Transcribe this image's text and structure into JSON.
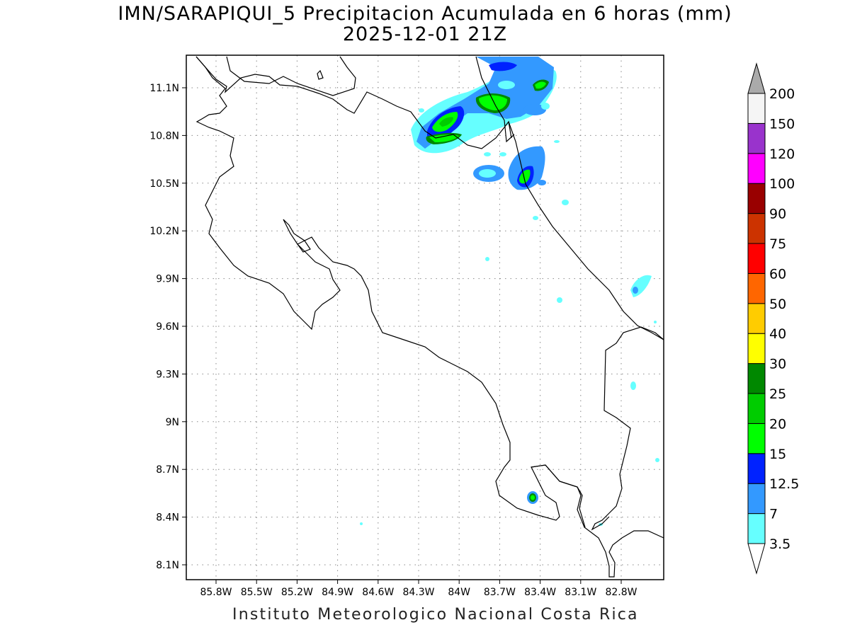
{
  "header": {
    "title_line1": "IMN/SARAPIQUI_5 Precipitacion Acumulada en 6 horas (mm)",
    "title_line2": "2025-12-01 21Z"
  },
  "footer": {
    "text": "Instituto Meteorologico Nacional Costa Rica"
  },
  "map": {
    "lon_ticks": [
      "85.8W",
      "85.5W",
      "85.2W",
      "84.9W",
      "84.6W",
      "84.3W",
      "84W",
      "83.7W",
      "83.4W",
      "83.1W",
      "82.8W"
    ],
    "lat_ticks": [
      "11.1N",
      "10.8N",
      "10.5N",
      "10.2N",
      "9.9N",
      "9.6N",
      "9.3N",
      "9N",
      "8.7N",
      "8.4N",
      "8.1N"
    ],
    "grid": "dotted"
  },
  "legend": {
    "items": [
      {
        "label": "3.5",
        "color": "#66ffff"
      },
      {
        "label": "7",
        "color": "#3399ff"
      },
      {
        "label": "12.5",
        "color": "#0022ff"
      },
      {
        "label": "15",
        "color": "#00ff00"
      },
      {
        "label": "20",
        "color": "#00cc00"
      },
      {
        "label": "25",
        "color": "#008800"
      },
      {
        "label": "30",
        "color": "#ffff00"
      },
      {
        "label": "40",
        "color": "#ffcc00"
      },
      {
        "label": "50",
        "color": "#ff6600"
      },
      {
        "label": "60",
        "color": "#ff0000"
      },
      {
        "label": "75",
        "color": "#cc3300"
      },
      {
        "label": "90",
        "color": "#990000"
      },
      {
        "label": "100",
        "color": "#ff00ff"
      },
      {
        "label": "120",
        "color": "#9933cc"
      },
      {
        "label": "150",
        "color": "#f5f5f5"
      },
      {
        "label": "200",
        "color": "#aaaaaa"
      }
    ]
  }
}
